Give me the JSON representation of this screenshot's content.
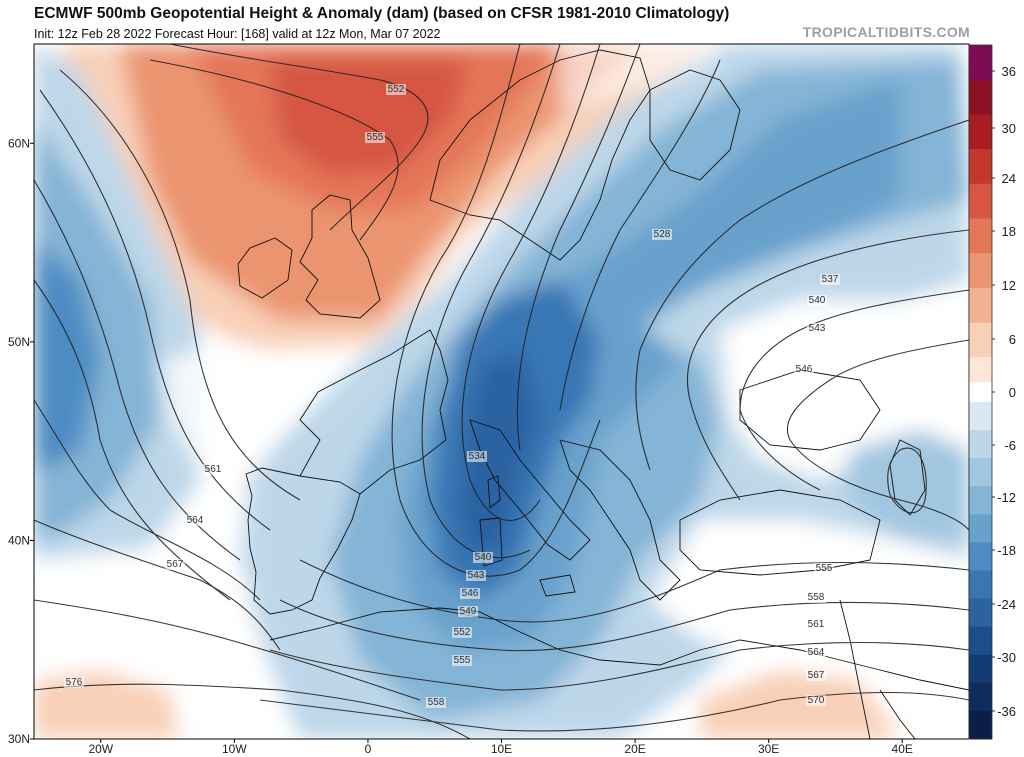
{
  "header": {
    "title": "ECMWF 500mb Geopotential Height & Anomaly (dam) (based on CFSR 1981-2010 Climatology)",
    "subtitle": "Init: 12z Feb 28 2022   Forecast Hour: [168]   valid at 12z Mon, Mar 07 2022",
    "brand": "TROPICALTIDBITS.COM"
  },
  "map": {
    "projection": "equirectangular",
    "lon_range": [
      -25,
      45
    ],
    "lat_range": [
      30,
      65
    ],
    "lat_labels": [
      "60N",
      "50N",
      "40N",
      "30N"
    ],
    "lon_labels": [
      "20W",
      "10W",
      "0",
      "10E",
      "20E",
      "30E",
      "40E"
    ],
    "contour_labels": [
      "552",
      "555",
      "528",
      "537",
      "540",
      "543",
      "546",
      "534",
      "561",
      "564",
      "567",
      "540",
      "543",
      "546",
      "549",
      "552",
      "555",
      "558",
      "555",
      "558",
      "561",
      "564",
      "567",
      "570",
      "576"
    ]
  },
  "colorbar": {
    "ticks": [
      "36",
      "30",
      "24",
      "18",
      "12",
      "6",
      "0",
      "-6",
      "-12",
      "-18",
      "-24",
      "-30",
      "-36"
    ],
    "colors": {
      "pos": [
        "#7d0c55",
        "#8a1022",
        "#a81d22",
        "#c4382c",
        "#d65643",
        "#e47658",
        "#eb9470",
        "#f2b291",
        "#f8d0b7",
        "#fbe6d8"
      ],
      "neg": [
        "#d9e8f2",
        "#bdd7e9",
        "#a0c6e0",
        "#84b4d6",
        "#68a1cc",
        "#4d8cc2",
        "#3876b4",
        "#2a62a2",
        "#1d4e8c",
        "#143b74",
        "#0e2c5c",
        "#0a1f45"
      ]
    }
  }
}
